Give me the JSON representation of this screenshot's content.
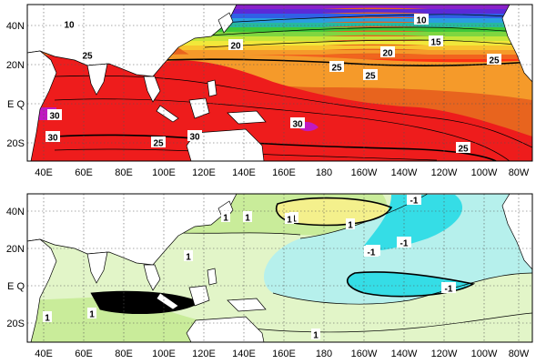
{
  "panels": [
    {
      "name": "top",
      "colors": {
        "ocean_background": "#e8641e",
        "warm_pool": "#ee1c1c",
        "hot_spot": "#c01ac0",
        "gradient_bands": [
          "#ff3014",
          "#f2641e",
          "#f59a2a",
          "#f7c52f",
          "#f1e83a",
          "#c6e63a",
          "#7fd640",
          "#3ec83a",
          "#26b8a0",
          "#2a9fe0",
          "#3060e6",
          "#5a2ad8",
          "#8a22c8"
        ]
      },
      "contour_labels": [
        {
          "text": "10"
        },
        {
          "text": "25"
        },
        {
          "text": "20"
        },
        {
          "text": "10"
        },
        {
          "text": "15"
        },
        {
          "text": "20"
        },
        {
          "text": "25"
        },
        {
          "text": "25"
        },
        {
          "text": "25"
        },
        {
          "text": "30"
        },
        {
          "text": "30"
        },
        {
          "text": "30"
        },
        {
          "text": "30"
        },
        {
          "text": "25"
        },
        {
          "text": "25"
        }
      ]
    },
    {
      "name": "bottom",
      "colors": {
        "ocean_background": "#e2f5c8",
        "positive_light": "#c9ec9a",
        "positive_strong": "#f4f08c",
        "negative_light": "#b6f0ec",
        "negative_strong": "#35dde6"
      },
      "contour_labels": [
        {
          "text": "1"
        },
        {
          "text": "-1"
        },
        {
          "text": "1"
        },
        {
          "text": "1"
        },
        {
          "text": "1"
        },
        {
          "text": "-1"
        },
        {
          "text": "1"
        },
        {
          "text": "-1"
        },
        {
          "text": "-1"
        },
        {
          "text": "-1"
        },
        {
          "text": "1"
        },
        {
          "text": "1"
        },
        {
          "text": "1"
        },
        {
          "text": "1"
        }
      ]
    }
  ],
  "axes": {
    "x_ticks": [
      "40E",
      "60E",
      "80E",
      "100E",
      "120E",
      "140E",
      "160E",
      "180",
      "160W",
      "140W",
      "120W",
      "100W",
      "80W"
    ],
    "y_ticks": [
      "40N",
      "20N",
      "E Q",
      "20S"
    ]
  }
}
